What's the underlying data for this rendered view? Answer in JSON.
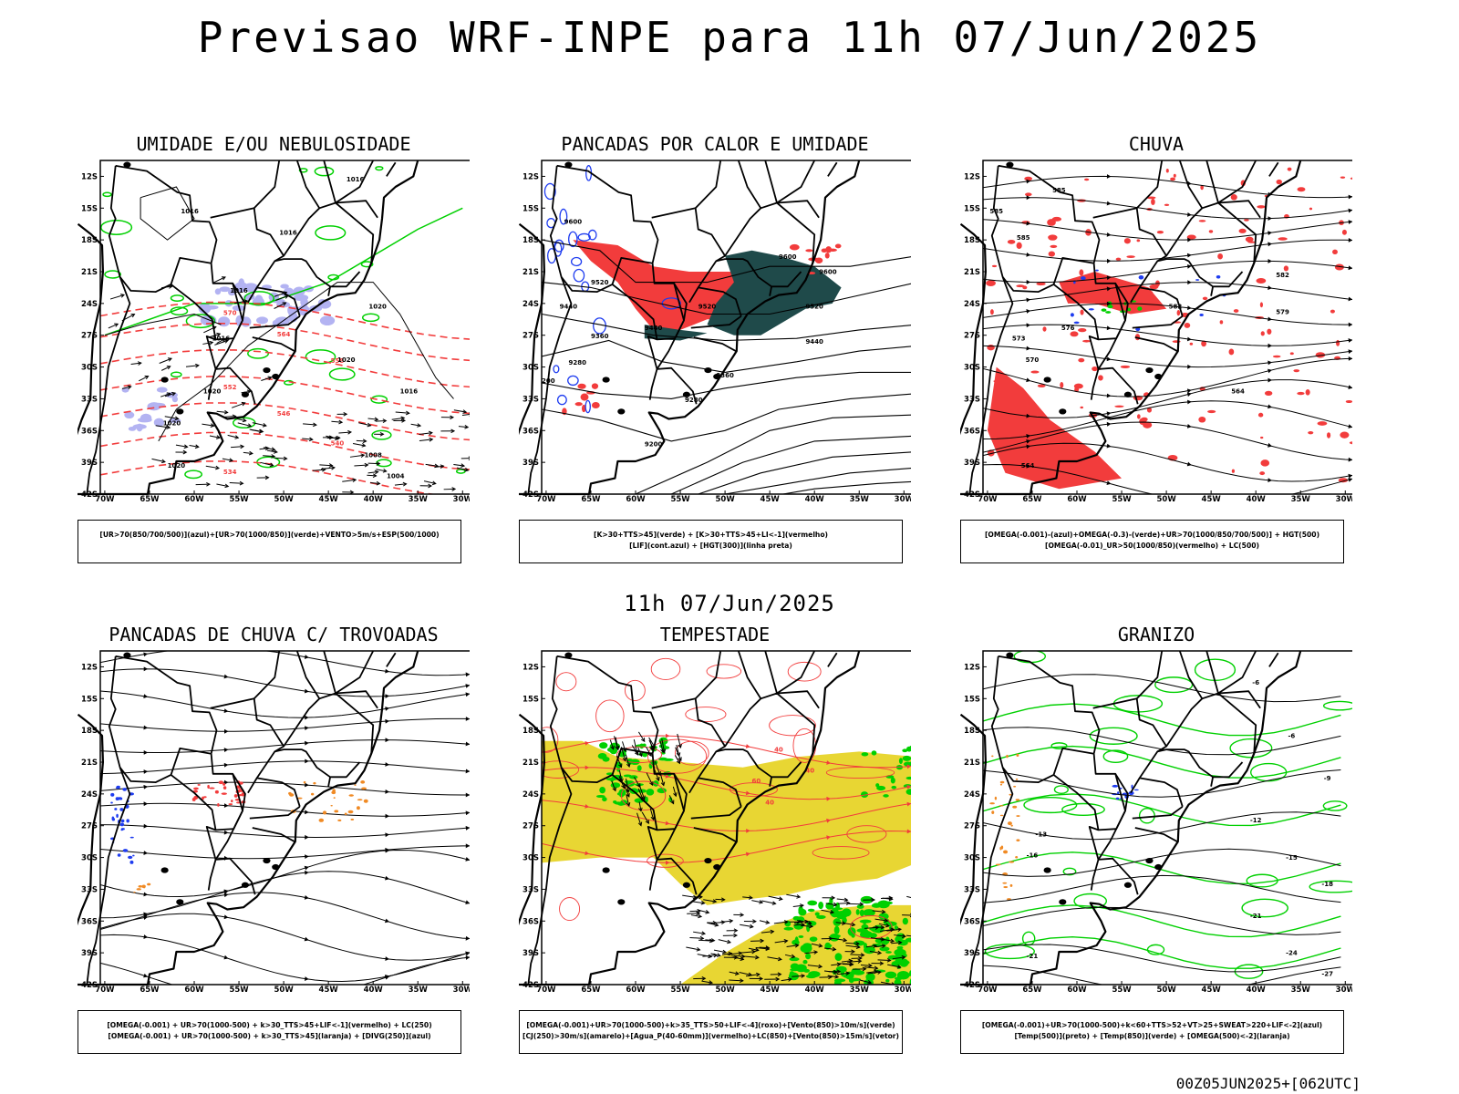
{
  "main_title": "Previsao WRF-INPE  para 11h 07/Jun/2025",
  "mid_title": "11h 07/Jun/2025",
  "run_stamp": "00Z05JUN2025+[062UTC]",
  "axes": {
    "lat_labels": [
      "12S",
      "15S",
      "18S",
      "21S",
      "24S",
      "27S",
      "30S",
      "33S",
      "36S",
      "39S",
      "42S"
    ],
    "lon_labels": [
      "70W",
      "65W",
      "60W",
      "55W",
      "50W",
      "45W",
      "40W",
      "35W",
      "30W"
    ]
  },
  "panels": [
    {
      "title": "UMIDADE E/OU NEBULOSIDADE",
      "legend": [
        "[UR>70(850/700/500)](azul)+[UR>70(1000/850)](verde)+VENTO>5m/s+ESP(500/1000)"
      ],
      "contour_labels": [
        "1016",
        "1016",
        "1016",
        "1016",
        "1016",
        "1020",
        "1020",
        "1020",
        "1020",
        "570",
        "570",
        "570",
        "564",
        "564",
        "558",
        "558",
        "552",
        "546",
        "540",
        "534",
        "1008",
        "1004"
      ]
    },
    {
      "title": "PANCADAS POR CALOR E UMIDADE",
      "legend": [
        "[K>30+TTS>45](verde) + [K>30+TTS>45+LI<-1](vermelho)",
        "[LIF](cont.azul) + [HGT(300)](linha preta)"
      ],
      "contour_labels": [
        "9600",
        "9600",
        "9600",
        "9520",
        "9520",
        "9520",
        "9440",
        "9440",
        "9440",
        "9360",
        "9360",
        "9280",
        "9280",
        "9200",
        "9200"
      ]
    },
    {
      "title": "CHUVA",
      "legend": [
        "[OMEGA(-0.001)-(azul)+OMEGA(-0.3)-(verde)+UR>70(1000/850/700/500)] + HGT(500)",
        "[OMEGA(-0.01)_UR>50(1000/850)(vermelho) + LC(500)"
      ],
      "contour_labels": [
        "585",
        "585",
        "585",
        "582",
        "582",
        "579",
        "576",
        "573",
        "570",
        "564",
        "564"
      ]
    },
    {
      "title": "PANCADAS DE CHUVA C/ TROVOADAS",
      "legend": [
        "[OMEGA(-0.001) + UR>70(1000-500) + k>30_TTS>45+LIF<-1](vermelho) + LC(250)",
        "[OMEGA(-0.001) + UR>70(1000-500) + k>30_TTS>45](laranja) + [DIVG(250)](azul)"
      ],
      "contour_labels": []
    },
    {
      "title": "TEMPESTADE",
      "legend": [
        "[OMEGA(-0.001)+UR>70(1000-500)+k>35_TTS>50+LIF<-4](roxo)+[Vento(850)>10m/s](verde)",
        "[CJ(250)>30m/s](amarelo)+[Agua_P(40-60mm)](vermelho)+LC(850)+[Vento(850)>15m/s](vetor)"
      ],
      "contour_labels": [
        "40",
        "40",
        "40",
        "60"
      ]
    },
    {
      "title": "GRANIZO",
      "legend": [
        "[OMEGA(-0.001)+UR>70(1000-500)+k<60+TTS>52+VT>25+SWEAT>220+LIF<-2](azul)",
        "[Temp(500)](preto) + [Temp(850)](verde) + [OMEGA(500)<-2](laranja)"
      ],
      "contour_labels": [
        "-6",
        "-6",
        "-9",
        "-12",
        "-12",
        "-15",
        "-18",
        "-18",
        "-21",
        "-21",
        "-24",
        "-27",
        "12",
        "13",
        "16"
      ]
    }
  ],
  "colors": {
    "land_outline": "#000000",
    "humidity_blue": "#b3b3f2",
    "green": "#00d000",
    "red": "#f23c3c",
    "dark_teal": "#1f4a4a",
    "blue_line": "#1e3cf0",
    "yellow": "#e8d633",
    "orange": "#f08a24",
    "purple": "#a31fd6"
  }
}
